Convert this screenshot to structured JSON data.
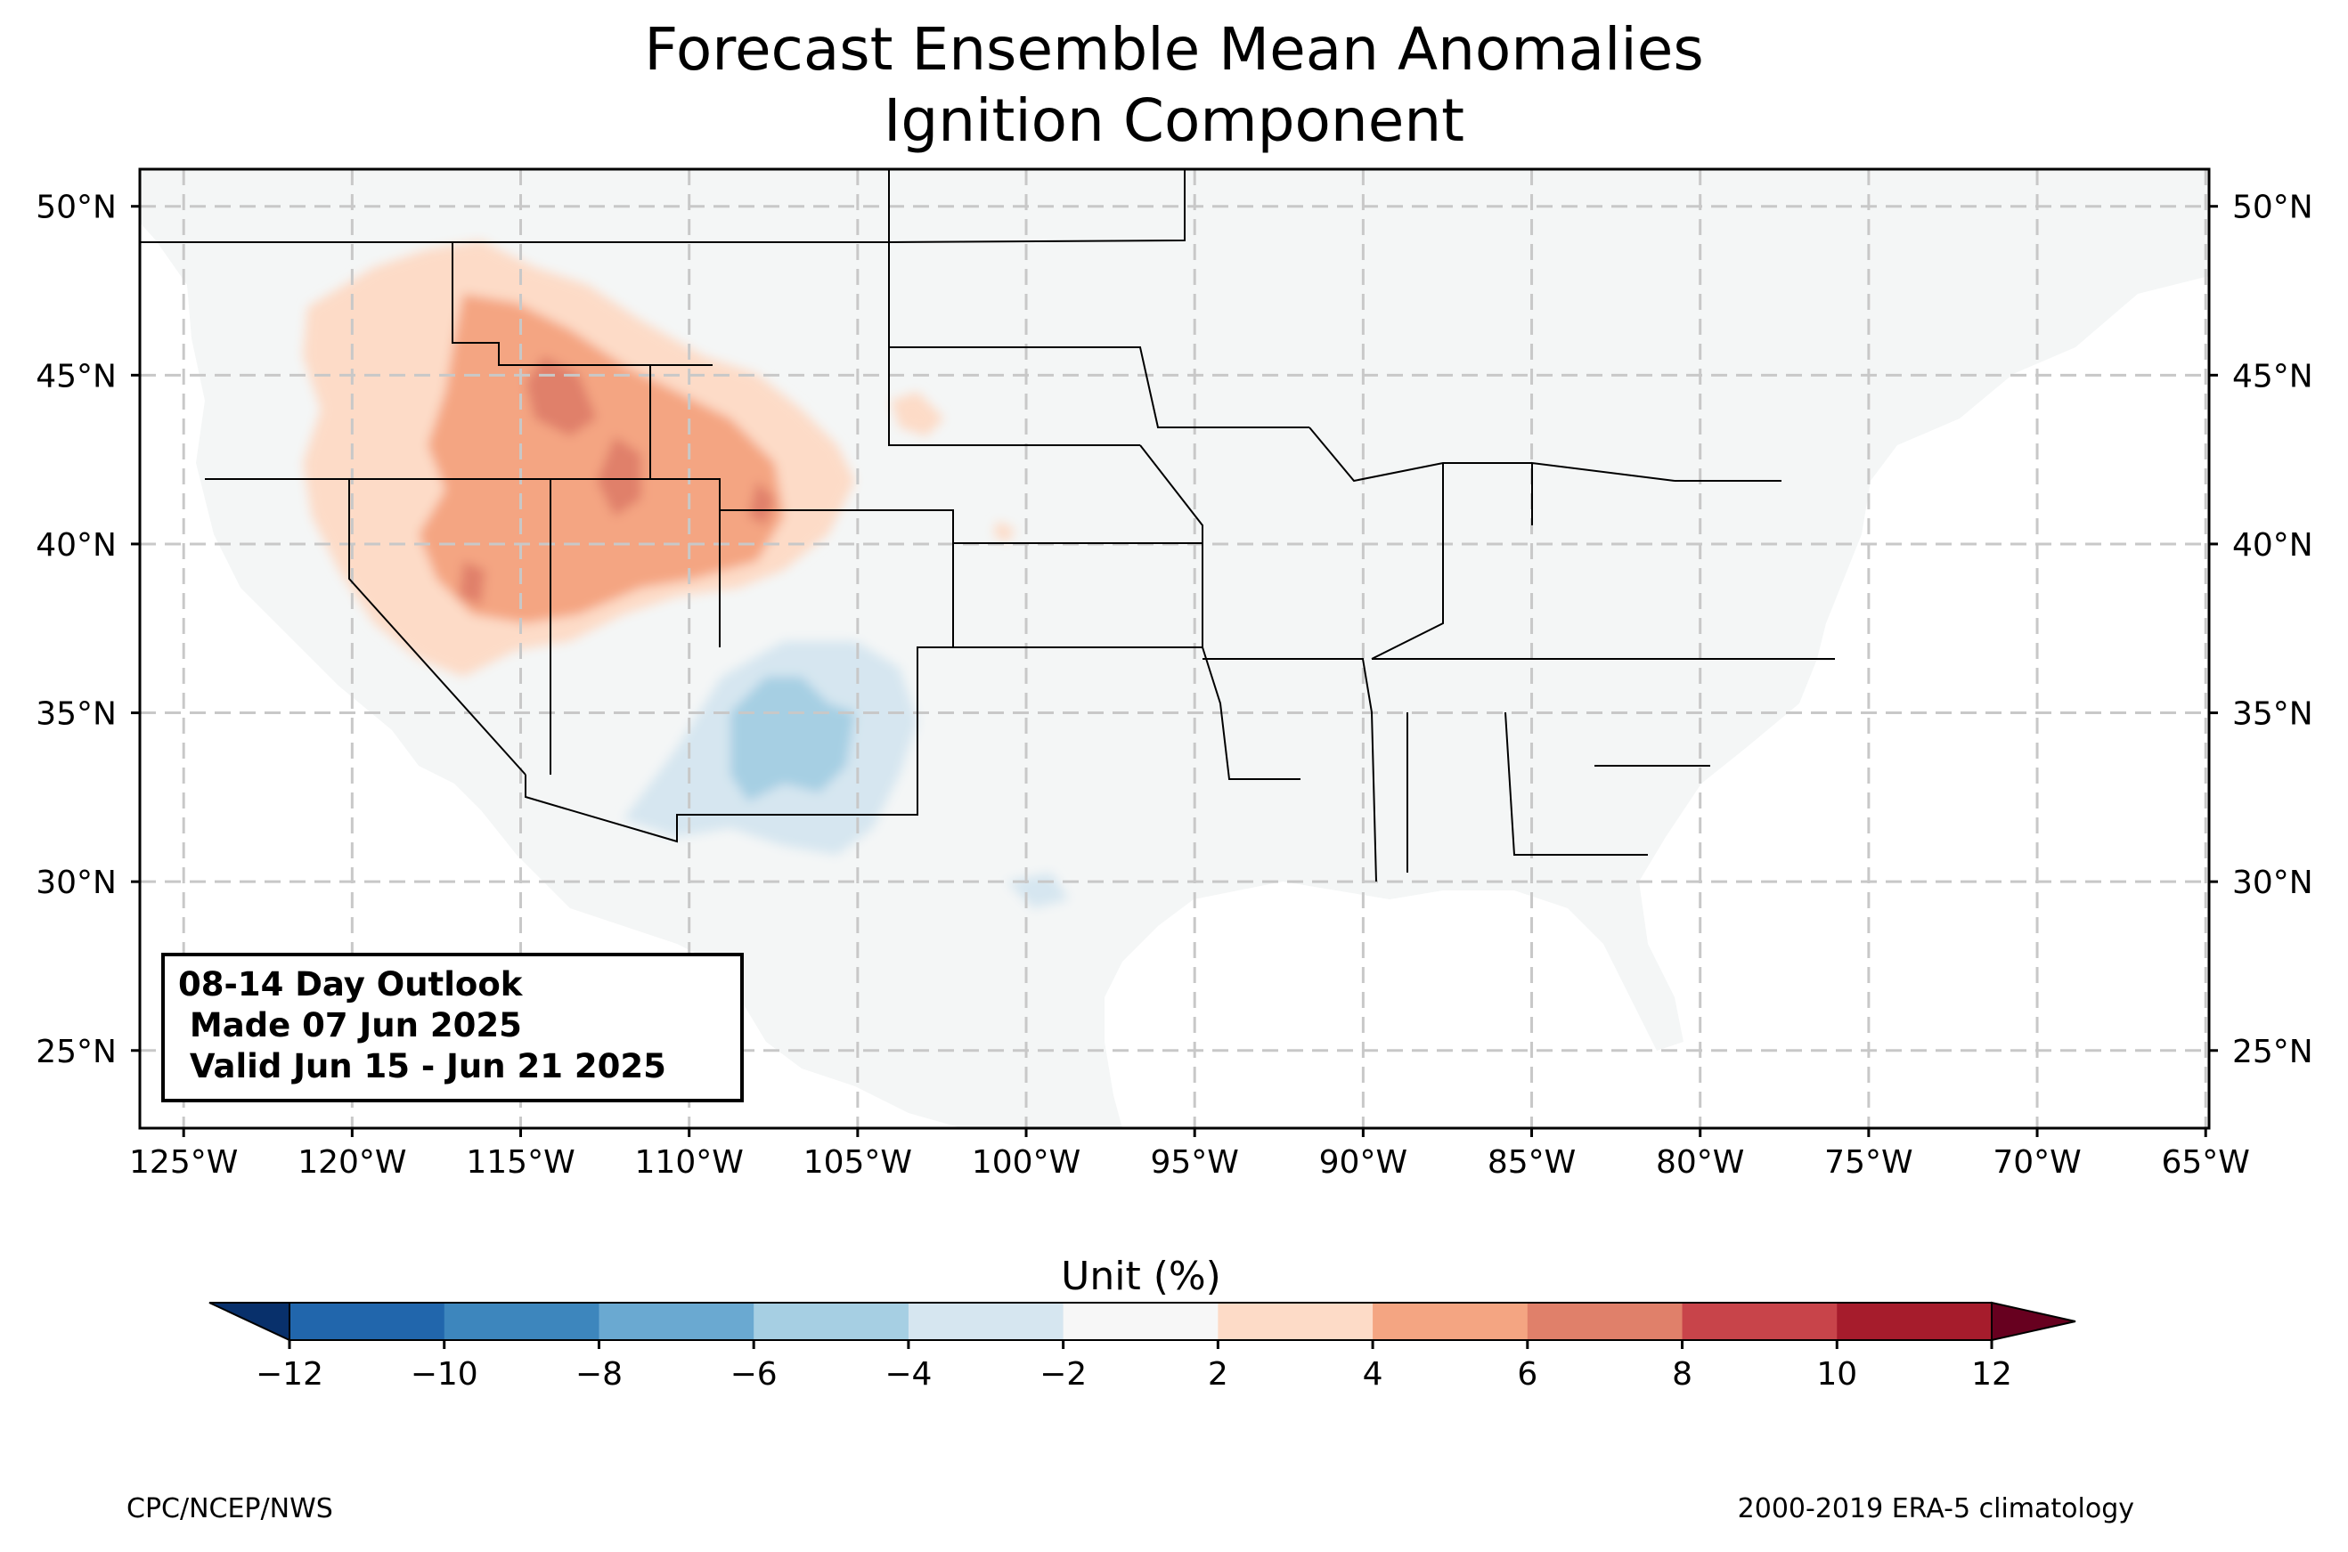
{
  "title": {
    "line1": "Forecast Ensemble Mean Anomalies",
    "line2": "Ignition Component"
  },
  "map": {
    "extent": {
      "lon": [
        -126.3,
        -64.9
      ],
      "lat": [
        22.7,
        51.1
      ]
    },
    "gridlines": "dashed light gray",
    "land_color": "#f4f6f6",
    "lat_ticks": [
      {
        "value": 50,
        "label": "50°N"
      },
      {
        "value": 45,
        "label": "45°N"
      },
      {
        "value": 40,
        "label": "40°N"
      },
      {
        "value": 35,
        "label": "35°N"
      },
      {
        "value": 30,
        "label": "30°N"
      },
      {
        "value": 25,
        "label": "25°N"
      }
    ],
    "lon_ticks": [
      {
        "value": -125,
        "label": "125°W"
      },
      {
        "value": -120,
        "label": "120°W"
      },
      {
        "value": -115,
        "label": "115°W"
      },
      {
        "value": -110,
        "label": "110°W"
      },
      {
        "value": -105,
        "label": "105°W"
      },
      {
        "value": -100,
        "label": "100°W"
      },
      {
        "value": -95,
        "label": "95°W"
      },
      {
        "value": -90,
        "label": "90°W"
      },
      {
        "value": -85,
        "label": "85°W"
      },
      {
        "value": -80,
        "label": "80°W"
      },
      {
        "value": -75,
        "label": "75°W"
      },
      {
        "value": -70,
        "label": "70°W"
      },
      {
        "value": -65,
        "label": "65°W"
      }
    ],
    "anomaly_areas": [
      {
        "region": "Great Basin / Northern Rockies",
        "category": "2 to 4",
        "color": "#fddbc7"
      },
      {
        "region": "Utah / Wyoming / Idaho",
        "category": "4 to 6",
        "color": "#f4a582"
      },
      {
        "region": "Central Utah / Colorado",
        "category": "6 to 8",
        "color": "#d6604d"
      },
      {
        "region": "New Mexico",
        "category": "-2 to -4",
        "color": "#d1e5f0"
      },
      {
        "region": "Eastern Arizona / New Mexico",
        "category": "-4 to -6",
        "color": "#92c5de"
      }
    ]
  },
  "info_box": {
    "line1": "08-14 Day Outlook",
    "line2": " Made 07 Jun 2025",
    "line3": " Valid Jun 15 - Jun 21 2025"
  },
  "colorbar": {
    "label": "Unit (%)",
    "extend": "both",
    "under_color": "#08306b",
    "over_color": "#67001f",
    "bins": [
      {
        "from": -12,
        "to": -10,
        "color": "#2166ac"
      },
      {
        "from": -10,
        "to": -8,
        "color": "#3d86bd"
      },
      {
        "from": -8,
        "to": -6,
        "color": "#6aa9d1"
      },
      {
        "from": -6,
        "to": -4,
        "color": "#a6cfe3"
      },
      {
        "from": -4,
        "to": -2,
        "color": "#d6e6f0"
      },
      {
        "from": -2,
        "to": 2,
        "color": "#f7f7f7"
      },
      {
        "from": 2,
        "to": 4,
        "color": "#fddbc7"
      },
      {
        "from": 4,
        "to": 6,
        "color": "#f4a582"
      },
      {
        "from": 6,
        "to": 8,
        "color": "#e0806a"
      },
      {
        "from": 8,
        "to": 10,
        "color": "#c8444a"
      },
      {
        "from": 10,
        "to": 12,
        "color": "#a61c2c"
      }
    ],
    "ticks": [
      "−12",
      "−10",
      "−8",
      "−6",
      "−4",
      "−2",
      "2",
      "4",
      "6",
      "8",
      "10",
      "12"
    ]
  },
  "footer": {
    "left": "CPC/NCEP/NWS",
    "right": "2000-2019 ERA-5 climatology"
  }
}
